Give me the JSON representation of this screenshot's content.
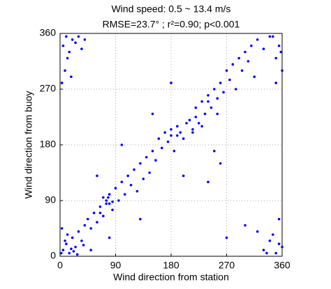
{
  "chart_data": {
    "type": "scatter",
    "title": "Wind speed: 0.5 ~ 13.4 m/s",
    "subtitle": "RMSE=23.7° ; r²=0.90; p<0.001",
    "x_label": "Wind direction from station",
    "y_label": "Wind direction from buoy",
    "xlim": [
      0,
      360
    ],
    "ylim": [
      0,
      360
    ],
    "xticks": [
      0,
      90,
      180,
      270,
      360
    ],
    "yticks": [
      0,
      90,
      180,
      270,
      360
    ],
    "grid": true,
    "color": "#0000ff",
    "x": [
      10,
      15,
      20,
      25,
      5,
      30,
      35,
      40,
      12,
      22,
      45,
      50,
      55,
      60,
      65,
      70,
      75,
      80,
      85,
      70,
      90,
      95,
      100,
      105,
      110,
      115,
      120,
      125,
      130,
      135,
      140,
      145,
      150,
      155,
      160,
      165,
      170,
      175,
      180,
      185,
      190,
      195,
      200,
      205,
      210,
      215,
      220,
      225,
      230,
      235,
      240,
      245,
      250,
      255,
      260,
      265,
      270,
      275,
      280,
      285,
      290,
      295,
      300,
      305,
      310,
      315,
      320,
      330,
      340,
      350,
      60,
      80,
      130,
      150,
      200,
      250,
      180,
      100,
      260,
      240,
      5,
      10,
      15,
      20,
      25,
      30,
      35,
      8,
      12,
      40,
      18,
      3,
      330,
      340,
      350,
      355,
      345,
      360,
      320,
      335,
      300,
      270,
      355,
      2,
      8,
      18,
      28,
      38,
      3,
      50,
      355,
      345,
      360,
      350,
      358,
      75,
      80,
      65,
      78,
      85,
      180,
      190,
      220,
      230,
      240,
      255,
      215
    ],
    "values": [
      20,
      5,
      30,
      15,
      10,
      40,
      25,
      50,
      35,
      8,
      60,
      45,
      70,
      55,
      80,
      95,
      85,
      100,
      75,
      65,
      110,
      90,
      120,
      100,
      130,
      115,
      140,
      105,
      150,
      125,
      160,
      135,
      170,
      155,
      190,
      175,
      200,
      185,
      195,
      170,
      210,
      200,
      190,
      215,
      220,
      205,
      240,
      215,
      250,
      230,
      260,
      240,
      270,
      255,
      280,
      265,
      300,
      285,
      310,
      270,
      320,
      300,
      330,
      315,
      340,
      290,
      350,
      335,
      355,
      320,
      130,
      30,
      60,
      230,
      130,
      170,
      280,
      180,
      150,
      120,
      340,
      355,
      330,
      350,
      345,
      355,
      335,
      300,
      320,
      350,
      290,
      280,
      10,
      25,
      5,
      20,
      35,
      15,
      40,
      5,
      50,
      30,
      60,
      5,
      25,
      12,
      3,
      18,
      45,
      10,
      340,
      355,
      300,
      280,
      330,
      90,
      85,
      70,
      95,
      88,
      205,
      195,
      225,
      210,
      250,
      230,
      200
    ]
  }
}
